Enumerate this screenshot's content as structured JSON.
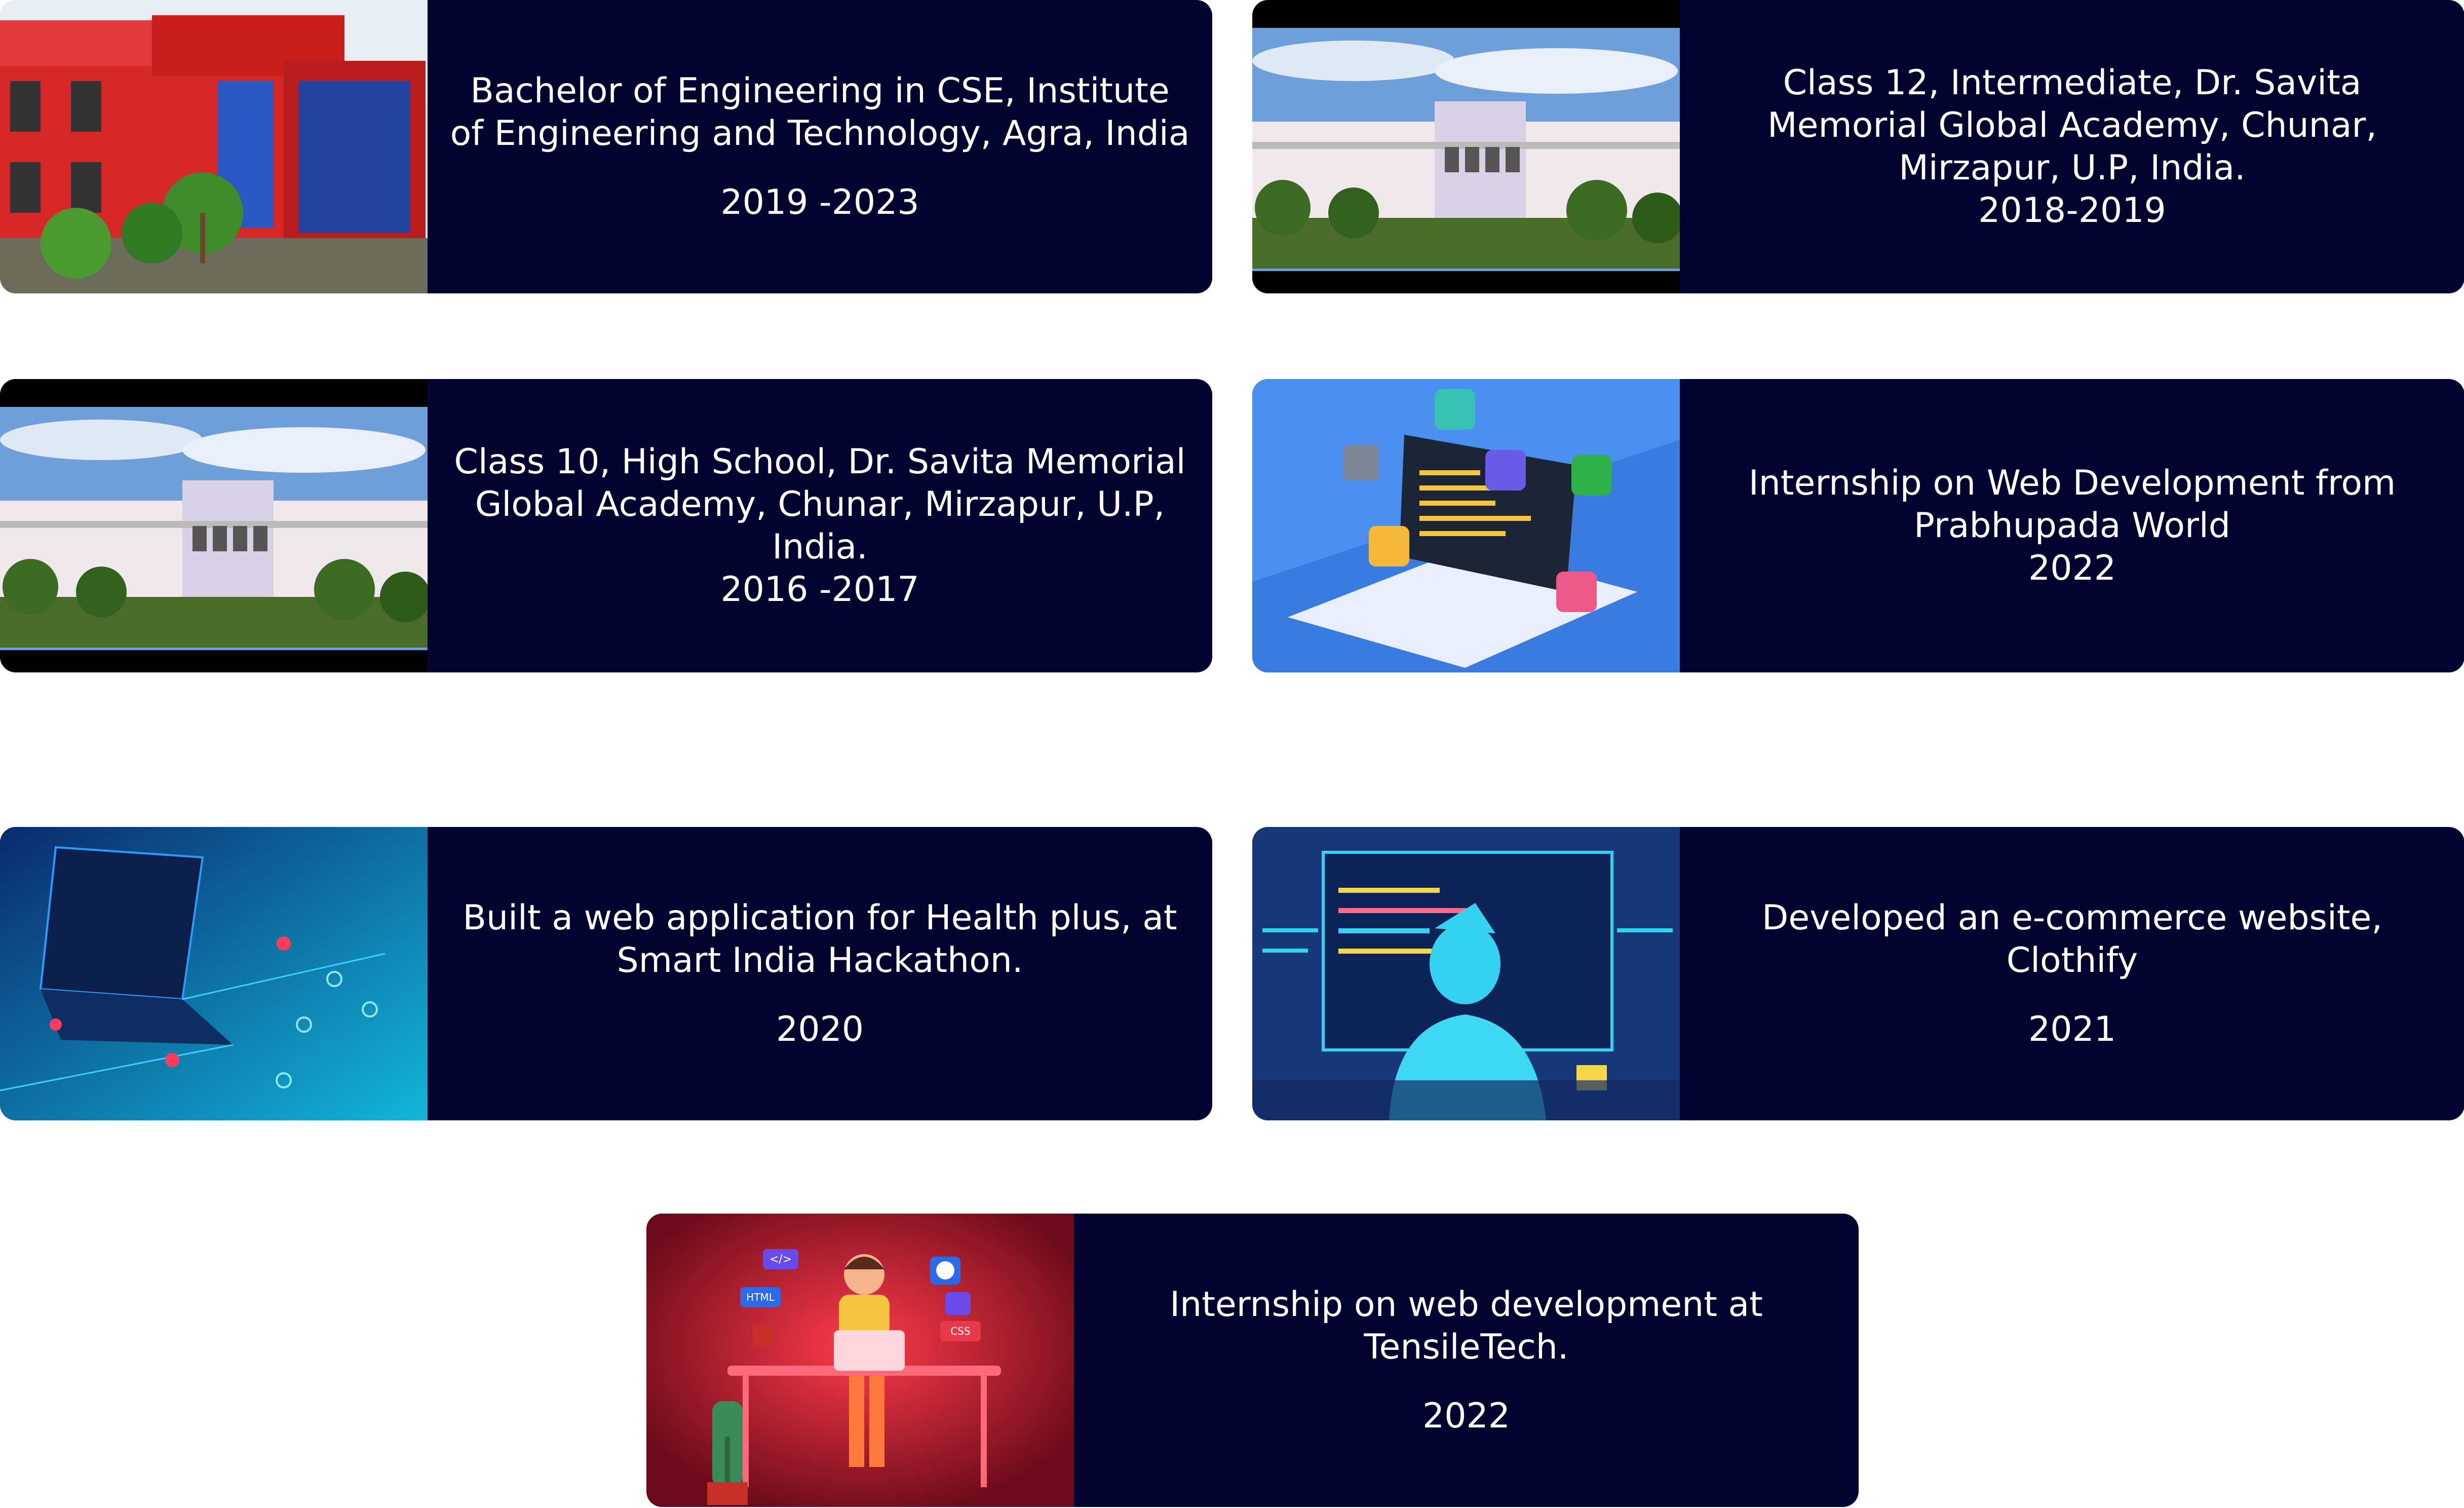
{
  "cards": [
    {
      "title": "Bachelor of Engineering in CSE, Institute of Engineering and Technology, Agra, India",
      "year": "2019 -2023",
      "image": "college-building-photo"
    },
    {
      "title": "Class 12, Intermediate, Dr. Savita Memorial Global Academy, Chunar, Mirzapur, U.P, India.",
      "year": "2018-2019",
      "image": "school-building-photo"
    },
    {
      "title": "Class 10, High School, Dr. Savita Memorial Global Academy, Chunar, Mirzapur, U.P, India.",
      "year": "2016 -2017",
      "image": "school-building-photo"
    },
    {
      "title": "Internship on Web Development from Prabhupada World",
      "year": "2022",
      "image": "laptop-code-illustration"
    },
    {
      "title": "Built a web application for Health plus, at Smart India Hackathon.",
      "year": "2020",
      "image": "circuit-laptop-illustration"
    },
    {
      "title": "Developed an e-commerce website, Clothify",
      "year": "2021",
      "image": "developer-screens-illustration"
    },
    {
      "title": "Internship on web development at TensileTech.",
      "year": "2022",
      "image": "developer-desk-illustration"
    }
  ],
  "thumb_labels": {
    "html": "HTML",
    "css": "CSS",
    "code": "</>"
  }
}
